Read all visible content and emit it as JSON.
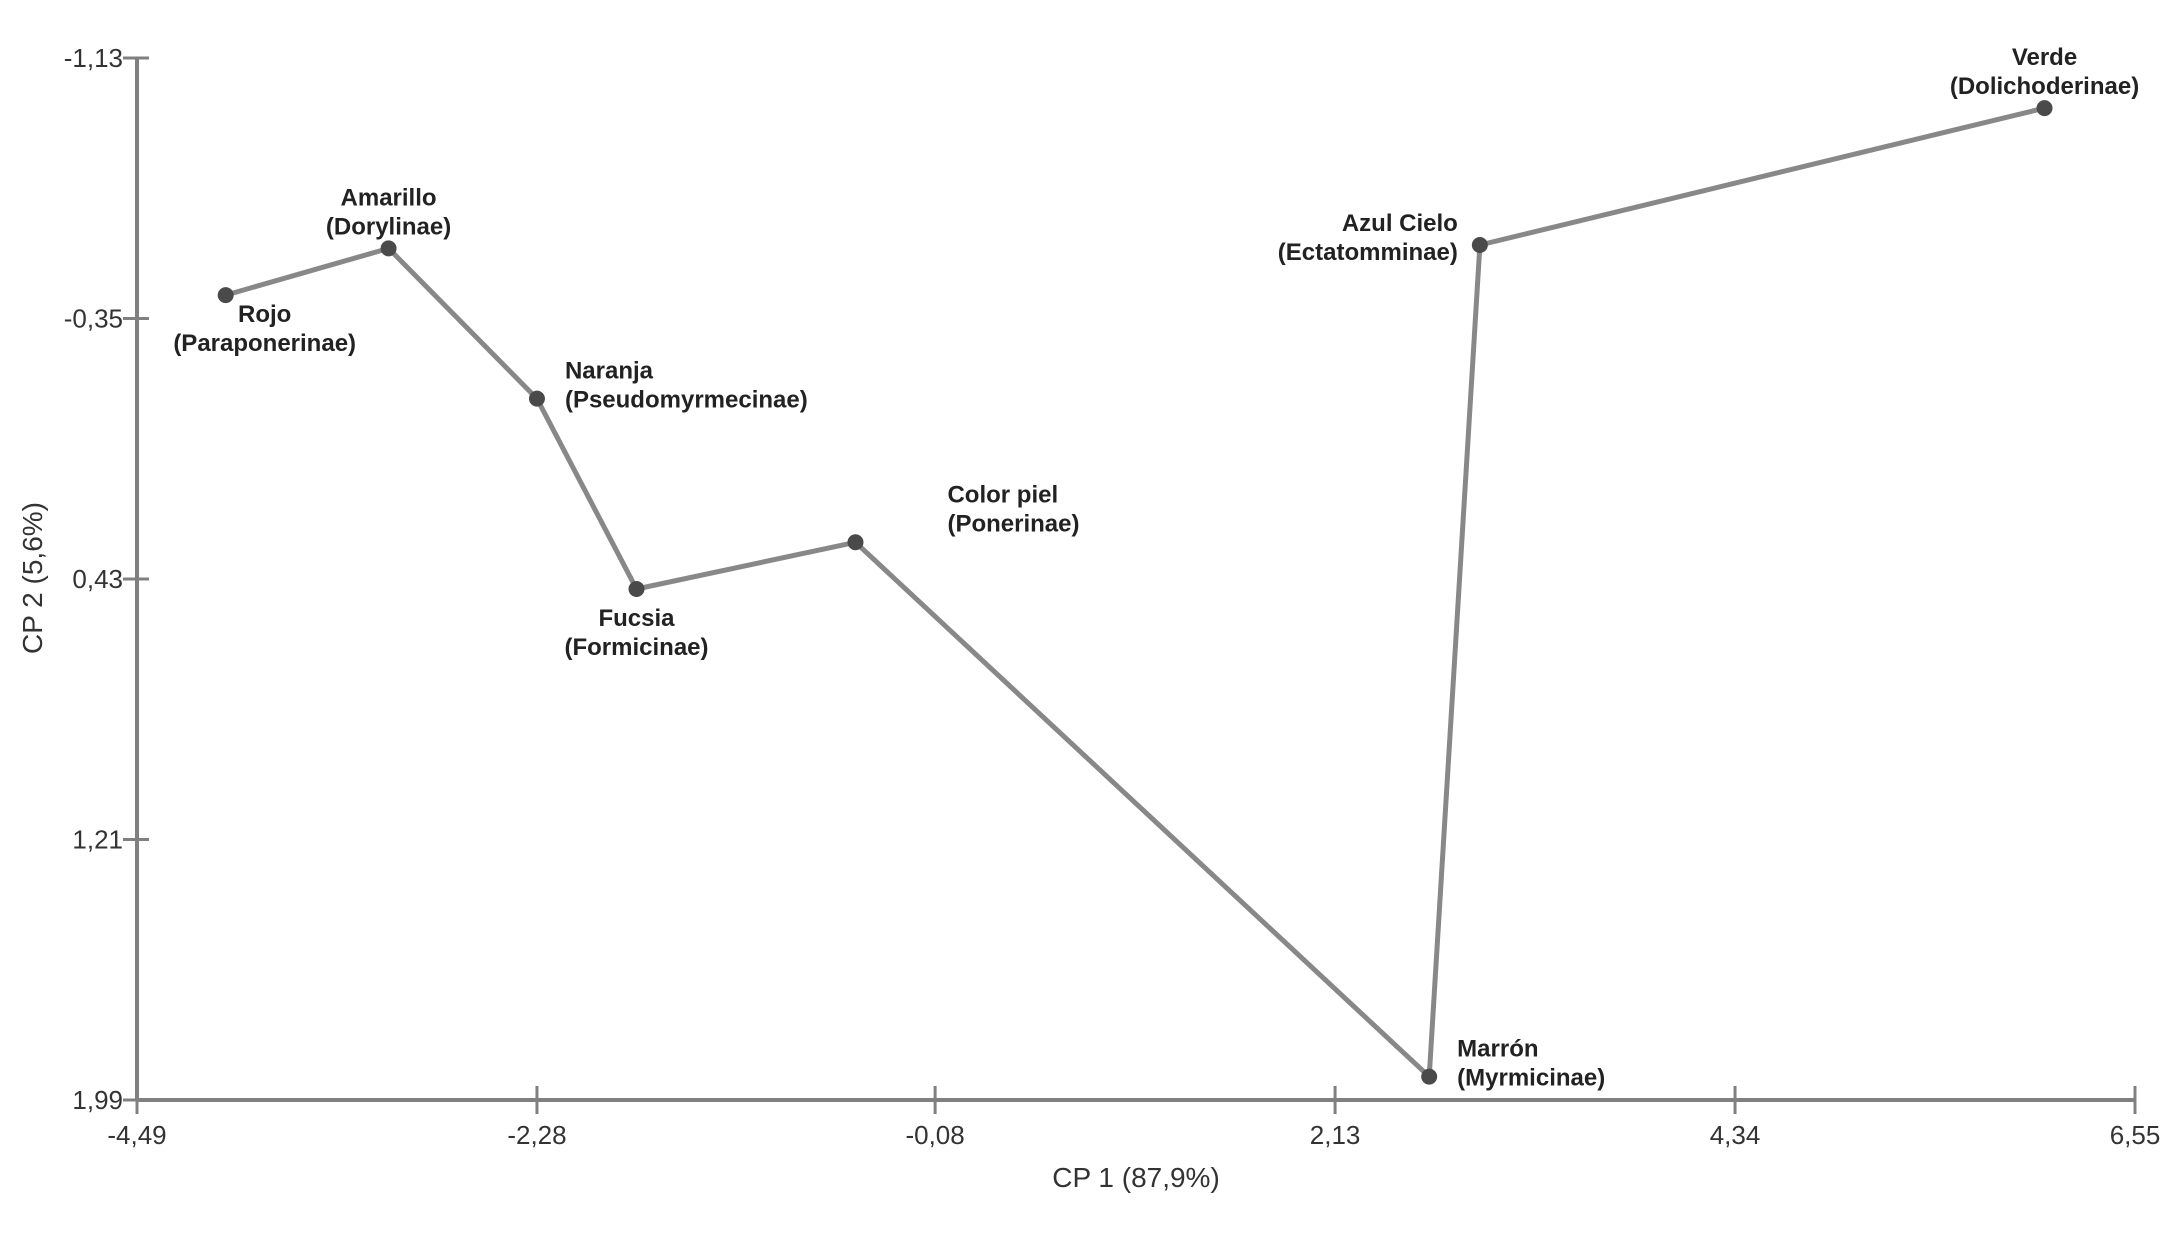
{
  "chart_data": {
    "type": "line",
    "title": "",
    "xlabel": "CP 1 (87,9%)",
    "ylabel": "CP 2 (5,6%)",
    "xlim": [
      -4.49,
      6.55
    ],
    "ylim": [
      -1.13,
      1.99
    ],
    "y_inverted": true,
    "grid": false,
    "x_ticks": [
      "-4,49",
      "-2,28",
      "-0,08",
      "2,13",
      "4,34",
      "6,55"
    ],
    "y_ticks": [
      "-1,13",
      "-0,35",
      "0,43",
      "1,21",
      "1,99"
    ],
    "line_color": "#888888",
    "marker_color": "#4a4a4a",
    "points": [
      {
        "name": "Rojo",
        "group": "(Paraponerinae)",
        "x": -4.0,
        "y": -0.42,
        "label_pos": "below-right"
      },
      {
        "name": "Amarillo",
        "group": "(Dorylinae)",
        "x": -3.1,
        "y": -0.56,
        "label_pos": "above"
      },
      {
        "name": "Naranja",
        "group": "(Pseudomyrmecinae)",
        "x": -2.28,
        "y": -0.11,
        "label_pos": "right"
      },
      {
        "name": "Fucsia",
        "group": "(Formicinae)",
        "x": -1.73,
        "y": 0.46,
        "label_pos": "below"
      },
      {
        "name": "Color piel",
        "group": "(Ponerinae)",
        "x": -0.52,
        "y": 0.32,
        "label_pos": "upper-right"
      },
      {
        "name": "Marrón",
        "group": "(Myrmicinae)",
        "x": 2.65,
        "y": 1.92,
        "label_pos": "right"
      },
      {
        "name": "Azul Cielo",
        "group": "(Ectatomminae)",
        "x": 2.93,
        "y": -0.57,
        "label_pos": "left"
      },
      {
        "name": "Verde",
        "group": "(Dolichoderinae)",
        "x": 6.05,
        "y": -0.98,
        "label_pos": "above"
      }
    ]
  }
}
